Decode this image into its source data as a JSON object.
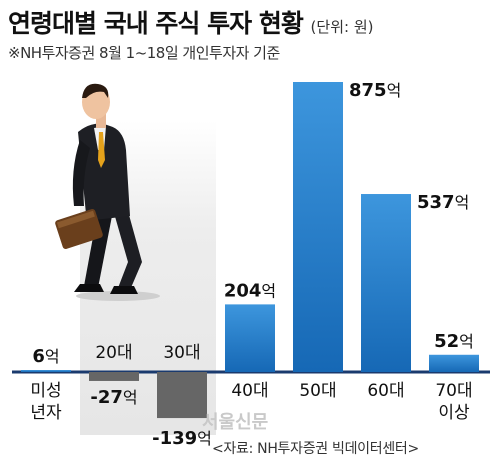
{
  "header": {
    "title": "연령대별 국내 주식 투자 현황",
    "unit": "(단위: 원)",
    "subtitle": "※NH투자증권 8월 1~18일 개인투자자 기준"
  },
  "footer": {
    "source": "<자료: NH투자증권 빅데이터센터>",
    "watermark": "서울신문"
  },
  "chart_data": {
    "type": "bar",
    "title": "연령대별 국내 주식 투자 현황",
    "unit": "(단위: 원)",
    "categories": [
      "미성\n년자",
      "20대",
      "30대",
      "40대",
      "50대",
      "60대",
      "70대\n이상"
    ],
    "values": [
      6,
      -27,
      -139,
      204,
      875,
      537,
      52
    ],
    "value_labels": [
      "6억",
      "-27억",
      "-139억",
      "204억",
      "875억",
      "537억",
      "52억"
    ],
    "colors": {
      "positive": "#1f6fb8",
      "positive_light": "#4fa0e0",
      "negative": "#666666",
      "axis": "#1a3a6e",
      "shade": "#ececec"
    },
    "illustration": "businessman-walking-with-briefcase"
  }
}
